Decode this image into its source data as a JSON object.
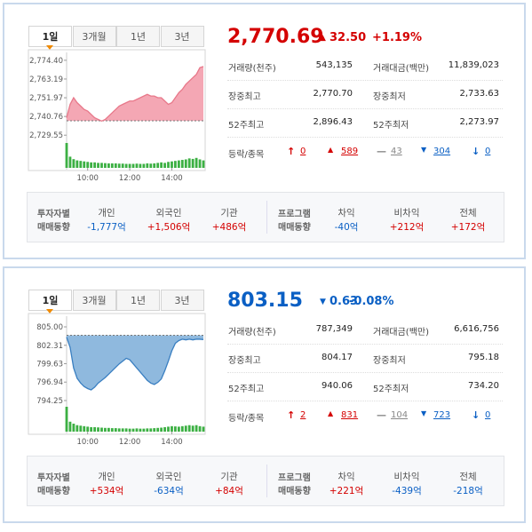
{
  "panels": [
    {
      "tabs": [
        "1일",
        "3개월",
        "1년",
        "3년"
      ],
      "selected_tab": 0,
      "direction": "up",
      "price": "2,770.69",
      "change": "32.50",
      "change_pct": "+1.19%",
      "stats": [
        [
          "거래량(천주)",
          "543,135",
          "거래대금(백만)",
          "11,839,023"
        ],
        [
          "장중최고",
          "2,770.70",
          "장중최저",
          "2,733.63"
        ],
        [
          "52주최고",
          "2,896.43",
          "52주최저",
          "2,273.97"
        ]
      ],
      "breadth_label": "등락/종목",
      "breadth": [
        "0",
        "589",
        "43",
        "304",
        "0"
      ],
      "investor_label": [
        "투자자별",
        "매매동향"
      ],
      "investors": [
        {
          "name": "개인",
          "value": "-1,777억"
        },
        {
          "name": "외국인",
          "value": "+1,506억"
        },
        {
          "name": "기관",
          "value": "+486억"
        }
      ],
      "program_label": [
        "프로그램",
        "매매동향"
      ],
      "program": [
        {
          "name": "차익",
          "value": "-40억"
        },
        {
          "name": "비차익",
          "value": "+212억"
        },
        {
          "name": "전체",
          "value": "+172억"
        }
      ],
      "chart_data": {
        "type": "area",
        "color": "#e8788a",
        "fill": "#f4a7b4",
        "ylim": [
          2727,
          2777
        ],
        "yticks": [
          {
            "value": 2774.4,
            "label": "2,774.40"
          },
          {
            "value": 2763.19,
            "label": "2,763.19"
          },
          {
            "value": 2751.97,
            "label": "2,751.97"
          },
          {
            "value": 2740.76,
            "label": "2,740.76"
          },
          {
            "value": 2729.55,
            "label": "2,729.55"
          }
        ],
        "xlim": [
          0,
          39
        ],
        "xticks": [
          {
            "value": 6,
            "label": "10:00"
          },
          {
            "value": 18,
            "label": "12:00"
          },
          {
            "value": 30,
            "label": "14:00"
          }
        ],
        "baseline": 2738.19,
        "values": [
          2740,
          2748,
          2752,
          2749,
          2747,
          2745,
          2744,
          2742,
          2740,
          2739,
          2738,
          2739,
          2741,
          2743,
          2745,
          2747,
          2748,
          2749,
          2750,
          2750,
          2751,
          2752,
          2753,
          2754,
          2753,
          2753,
          2752,
          2752,
          2750,
          2748,
          2749,
          2752,
          2755,
          2757,
          2760,
          2762,
          2764,
          2766,
          2770,
          2770.69
        ],
        "volume": [
          100,
          45,
          35,
          30,
          28,
          26,
          24,
          22,
          22,
          20,
          20,
          19,
          18,
          18,
          18,
          17,
          17,
          16,
          16,
          16,
          17,
          16,
          16,
          18,
          17,
          18,
          20,
          22,
          20,
          24,
          26,
          28,
          30,
          32,
          34,
          38,
          36,
          40,
          34,
          30
        ],
        "volume_color": "#3cb043"
      }
    },
    {
      "tabs": [
        "1일",
        "3개월",
        "1년",
        "3년"
      ],
      "selected_tab": 0,
      "direction": "down",
      "price": "803.15",
      "change": "0.63",
      "change_pct": "-0.08%",
      "stats": [
        [
          "거래량(천주)",
          "787,349",
          "거래대금(백만)",
          "6,616,756"
        ],
        [
          "장중최고",
          "804.17",
          "장중최저",
          "795.18"
        ],
        [
          "52주최고",
          "940.06",
          "52주최저",
          "734.20"
        ]
      ],
      "breadth_label": "등락/종목",
      "breadth": [
        "2",
        "831",
        "104",
        "723",
        "0"
      ],
      "investor_label": [
        "투자자별",
        "매매동향"
      ],
      "investors": [
        {
          "name": "개인",
          "value": "+534억"
        },
        {
          "name": "외국인",
          "value": "-634억"
        },
        {
          "name": "기관",
          "value": "+84억"
        }
      ],
      "program_label": [
        "프로그램",
        "매매동향"
      ],
      "program": [
        {
          "name": "차익",
          "value": "+221억"
        },
        {
          "name": "비차익",
          "value": "-439억"
        },
        {
          "name": "전체",
          "value": "-218억"
        }
      ],
      "chart_data": {
        "type": "area",
        "color": "#3a7fc1",
        "fill": "#8fb9de",
        "ylim": [
          793.86,
          806.04
        ],
        "yticks": [
          {
            "value": 805.0,
            "label": "805.00"
          },
          {
            "value": 802.31,
            "label": "802.31"
          },
          {
            "value": 799.63,
            "label": "799.63"
          },
          {
            "value": 796.94,
            "label": "796.94"
          },
          {
            "value": 794.25,
            "label": "794.25"
          }
        ],
        "xlim": [
          0,
          39
        ],
        "xticks": [
          {
            "value": 6,
            "label": "10:00"
          },
          {
            "value": 18,
            "label": "12:00"
          },
          {
            "value": 30,
            "label": "14:00"
          }
        ],
        "baseline": 803.78,
        "values": [
          803.5,
          802,
          799,
          797.5,
          796.8,
          796.3,
          796,
          795.8,
          796.2,
          796.8,
          797.2,
          797.6,
          798.1,
          798.6,
          799.1,
          799.6,
          800,
          800.4,
          800.2,
          799.6,
          799,
          798.4,
          797.8,
          797.2,
          796.8,
          796.6,
          796.9,
          797.4,
          798.6,
          800,
          801.5,
          802.6,
          803,
          803.2,
          803.1,
          803.2,
          803.1,
          803.2,
          803.2,
          803.15
        ],
        "volume": [
          100,
          40,
          32,
          26,
          24,
          22,
          20,
          18,
          18,
          17,
          16,
          15,
          15,
          14,
          14,
          13,
          13,
          13,
          12,
          12,
          13,
          12,
          12,
          13,
          13,
          14,
          15,
          16,
          18,
          20,
          22,
          21,
          20,
          22,
          24,
          26,
          24,
          26,
          22,
          20
        ],
        "volume_color": "#3cb043"
      }
    }
  ]
}
